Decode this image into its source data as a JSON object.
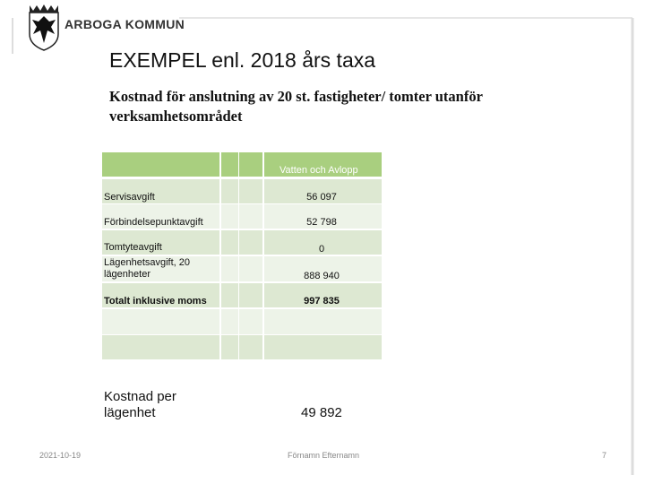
{
  "header": {
    "organization": "ARBOGA KOMMUN",
    "title": "EXEMPEL enl. 2018 års taxa",
    "subtitle": "Kostnad för anslutning av 20 st. fastigheter/ tomter utanför verksamhetsområdet"
  },
  "table": {
    "header": "Vatten och Avlopp",
    "rows": [
      [
        "Servisavgift",
        "56 097"
      ],
      [
        "Förbindelsepunktavgift",
        "52 798"
      ],
      [
        "Tomtyteavgift",
        "0"
      ],
      [
        "Lägenhetsavgift, 20 lägenheter",
        "888 940"
      ],
      [
        "Totalt inklusive moms",
        "997 835"
      ]
    ]
  },
  "summary": {
    "label": "Kostnad per lägenhet",
    "value": "49 892"
  },
  "footer": {
    "date": "2021-10-19",
    "author": "Förnamn Efternamn",
    "page": "7"
  }
}
